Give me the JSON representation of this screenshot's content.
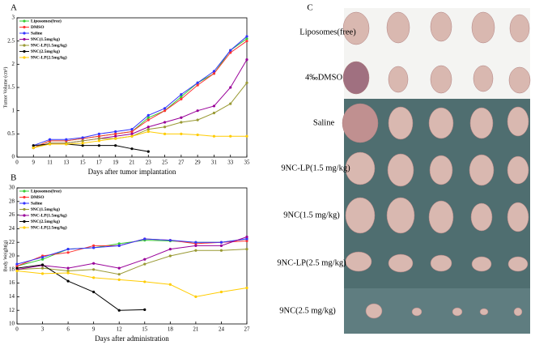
{
  "chart_data": [
    {
      "type": "line",
      "panel_label": "A",
      "x_label": "Days after tumor implantation",
      "y_label": "Tumor Volume (cm³)",
      "categories": [
        "0",
        "9",
        "11",
        "13",
        "15",
        "17",
        "19",
        "21",
        "23",
        "25",
        "27",
        "29",
        "31",
        "33",
        "35"
      ],
      "ylim": [
        0,
        3
      ],
      "yticks": [
        0,
        0.5,
        1,
        1.5,
        2,
        2.5,
        3
      ],
      "series": [
        {
          "name": "Liposomes(free)",
          "color": "#33cc33",
          "values": [
            null,
            0.2,
            0.35,
            0.35,
            0.4,
            0.45,
            0.5,
            0.55,
            0.85,
            1.0,
            1.3,
            1.6,
            1.8,
            2.3,
            2.55
          ]
        },
        {
          "name": "DMSO",
          "color": "#ff3333",
          "values": [
            null,
            0.2,
            0.35,
            0.35,
            0.4,
            0.45,
            0.5,
            0.55,
            0.8,
            1.0,
            1.25,
            1.55,
            1.8,
            2.25,
            2.5
          ]
        },
        {
          "name": "Saline",
          "color": "#3333ff",
          "values": [
            null,
            0.25,
            0.38,
            0.38,
            0.42,
            0.5,
            0.55,
            0.6,
            0.9,
            1.05,
            1.35,
            1.6,
            1.85,
            2.3,
            2.6
          ]
        },
        {
          "name": "9NC(1.5mg/kg)",
          "color": "#990099",
          "values": [
            null,
            0.2,
            0.3,
            0.3,
            0.35,
            0.4,
            0.45,
            0.5,
            0.65,
            0.75,
            0.85,
            1.0,
            1.1,
            1.5,
            2.1
          ]
        },
        {
          "name": "9NC-LP(1.5mg/kg)",
          "color": "#999933",
          "values": [
            null,
            0.2,
            0.3,
            0.3,
            0.35,
            0.4,
            0.4,
            0.45,
            0.6,
            0.65,
            0.75,
            0.8,
            0.95,
            1.15,
            1.6
          ]
        },
        {
          "name": "9NC(2.5mg/kg)",
          "color": "#000000",
          "values": [
            null,
            0.25,
            0.28,
            0.28,
            0.25,
            0.25,
            0.25,
            0.18,
            0.12,
            null,
            null,
            null,
            null,
            null,
            null
          ]
        },
        {
          "name": "9NC-LP(2.5mg/kg)",
          "color": "#ffcc00",
          "values": [
            null,
            0.2,
            0.28,
            0.28,
            0.3,
            0.35,
            0.4,
            0.45,
            0.55,
            0.5,
            0.5,
            0.48,
            0.45,
            0.45,
            0.45
          ]
        }
      ]
    },
    {
      "type": "line",
      "panel_label": "B",
      "x_label": "Days after administration",
      "y_label": "Body Weight(g)",
      "x": [
        0,
        3,
        6,
        9,
        12,
        15,
        18,
        21,
        24,
        27
      ],
      "xlim": [
        0,
        27
      ],
      "xticks": [
        0,
        3,
        6,
        9,
        12,
        15,
        18,
        21,
        24,
        27
      ],
      "ylim": [
        10,
        30
      ],
      "yticks": [
        10,
        12,
        14,
        16,
        18,
        20,
        22,
        24,
        26,
        28,
        30
      ],
      "series": [
        {
          "name": "Liposomes(free)",
          "color": "#33cc33",
          "values": [
            18.5,
            19.5,
            21,
            21.2,
            21.8,
            22.3,
            22.2,
            22,
            22,
            22.5
          ]
        },
        {
          "name": "DMSO",
          "color": "#ff3333",
          "values": [
            18.5,
            20,
            20.5,
            21.5,
            21.5,
            22.5,
            22.3,
            21.8,
            22,
            22.2
          ]
        },
        {
          "name": "Saline",
          "color": "#3333ff",
          "values": [
            18.8,
            19.8,
            21,
            21.2,
            21.5,
            22.5,
            22.3,
            22,
            22,
            22.5
          ]
        },
        {
          "name": "9NC(1.5mg/kg)",
          "color": "#999933",
          "values": [
            18,
            18.2,
            17.8,
            18,
            17.3,
            18.8,
            20,
            20.8,
            20.8,
            21
          ]
        },
        {
          "name": "9NC-LP(1.5mg/kg)",
          "color": "#990099",
          "values": [
            18,
            18.6,
            18.2,
            18.9,
            18.2,
            19.5,
            21,
            21.5,
            21.5,
            22.8
          ]
        },
        {
          "name": "9NC(2.5mg/kg)",
          "color": "#000000",
          "values": [
            18.2,
            18.7,
            16.3,
            14.7,
            12,
            12.1,
            null,
            null,
            null,
            null
          ]
        },
        {
          "name": "9NC-LP(2.5mg/kg)",
          "color": "#ffcc00",
          "values": [
            17.8,
            17.4,
            17.5,
            16.8,
            16.5,
            16.2,
            15.8,
            14,
            14.7,
            15.3
          ]
        }
      ]
    }
  ],
  "photo_panel": {
    "label": "C",
    "rows": [
      "Liposomes(free)",
      "4‰DMSO",
      "Saline",
      "9NC-LP(1.5 mg/kg)",
      "9NC(1.5 mg/kg)",
      "9NC-LP(2.5 mg/kg)",
      "9NC(2.5 mg/kg)"
    ]
  }
}
